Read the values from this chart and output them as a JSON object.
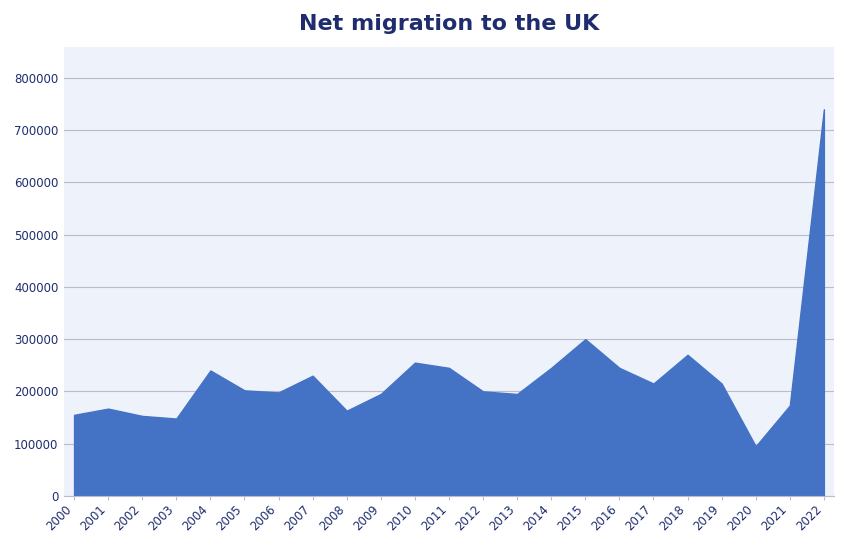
{
  "title": "Net migration to the UK",
  "years": [
    2000,
    2001,
    2002,
    2003,
    2004,
    2005,
    2006,
    2007,
    2008,
    2009,
    2010,
    2011,
    2012,
    2013,
    2014,
    2015,
    2016,
    2017,
    2018,
    2019,
    2020,
    2021,
    2022
  ],
  "values": [
    155000,
    167000,
    153000,
    148000,
    240000,
    202000,
    198000,
    230000,
    163000,
    195000,
    255000,
    245000,
    200000,
    195000,
    245000,
    300000,
    245000,
    215000,
    270000,
    215000,
    95000,
    173000,
    740000
  ],
  "fill_color": "#4472C4",
  "background_color": "#FFFFFF",
  "plot_bg_color": "#EEF2FA",
  "title_color": "#1F2D6E",
  "title_fontsize": 16,
  "tick_label_color": "#1F2D6E",
  "grid_color": "#BBBBCC",
  "ylim": [
    0,
    860000
  ],
  "yticks": [
    0,
    100000,
    200000,
    300000,
    400000,
    500000,
    600000,
    700000,
    800000
  ],
  "figsize": [
    8.48,
    5.47
  ],
  "dpi": 100
}
